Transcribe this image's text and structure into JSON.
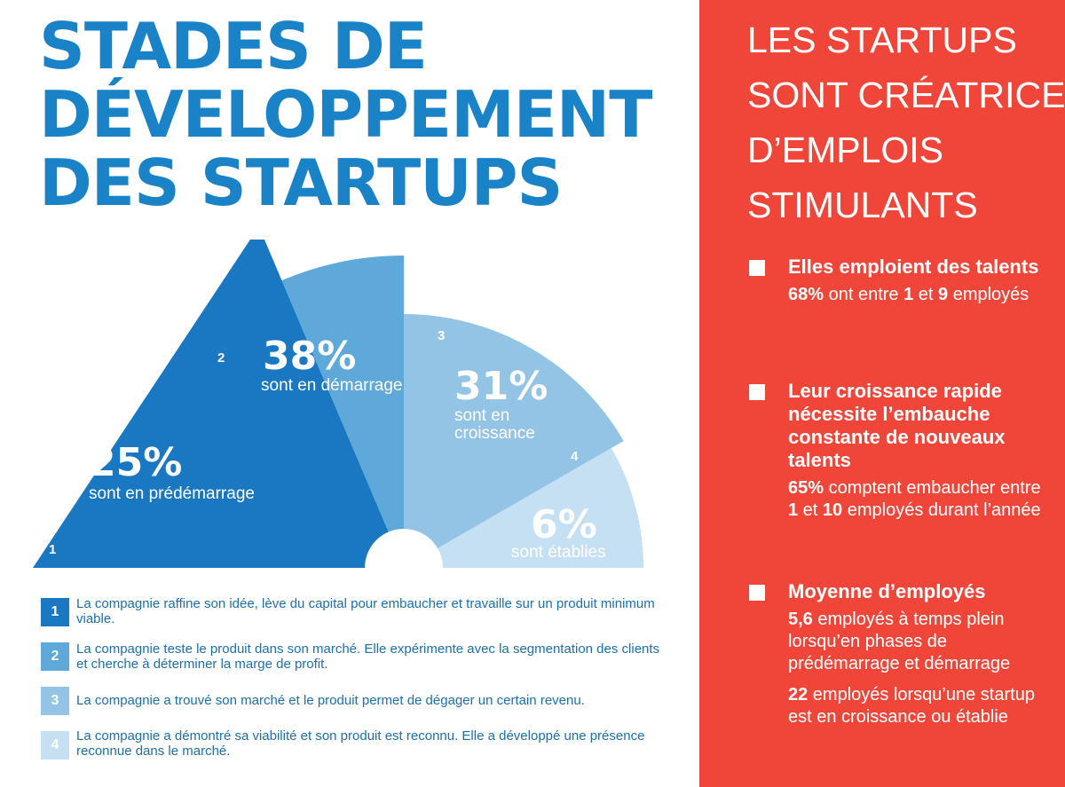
{
  "title": {
    "lines": [
      "STADES DE",
      "DÉVELOPPEMENT",
      "DES STARTUPS"
    ]
  },
  "colors": {
    "title": "#1a82c7",
    "panel_bg": "#f0463a",
    "stage1": "#1a78c2",
    "stage2": "#5ea8da",
    "stage3": "#93c4e6",
    "stage4": "#c5e0f3",
    "legend_text": "#1a6fb3"
  },
  "chart_data": {
    "type": "pie",
    "variant": "semicircle-rose",
    "categories": [
      "1",
      "2",
      "3",
      "4"
    ],
    "values": [
      25,
      38,
      31,
      6
    ],
    "value_labels": [
      "25%",
      "38%",
      "31%",
      "6%"
    ],
    "descriptions": [
      "sont en prédémarrage",
      "sont en démarrage",
      "sont en croissance",
      "sont établies"
    ]
  },
  "legend": [
    {
      "num": "1",
      "text": "La compagnie raffine son idée, lève du capital pour embaucher et travaille sur un produit minimum viable."
    },
    {
      "num": "2",
      "text": "La compagnie teste le produit dans son marché. Elle expérimente avec la segmentation des clients et cherche à déterminer la marge de profit."
    },
    {
      "num": "3",
      "text": "La compagnie a trouvé son marché et le produit permet de dégager un certain revenu."
    },
    {
      "num": "4",
      "text": "La compagnie a démontré sa viabilité et son produit est reconnu. Elle a développé une présence reconnue dans le marché."
    }
  ],
  "panel": {
    "title_lines": [
      "LES STARTUPS",
      "SONT CRÉATRICES",
      "D’EMPLOIS",
      "STIMULANTS"
    ],
    "items": [
      {
        "heading": "Elles emploient des talents",
        "pct": "68%",
        "pre": " ont entre ",
        "n1": "1",
        "mid": " et ",
        "n2": "9",
        "post": " employés"
      },
      {
        "heading": "Leur croissance rapide nécessite l’embauche constante de nouveaux talents",
        "pct": "65%",
        "pre": " comptent embaucher entre ",
        "n1": "1",
        "mid": " et ",
        "n2": "10",
        "post": " employés durant l’année"
      },
      {
        "heading": "Moyenne d’employés",
        "avg1_value": "5,6",
        "avg1_text": " employés à temps plein lorsqu’en phases de prédémarrage et démarrage",
        "avg2_value": "22",
        "avg2_text": " employés lorsqu’une startup est en croissance ou établie"
      }
    ]
  }
}
